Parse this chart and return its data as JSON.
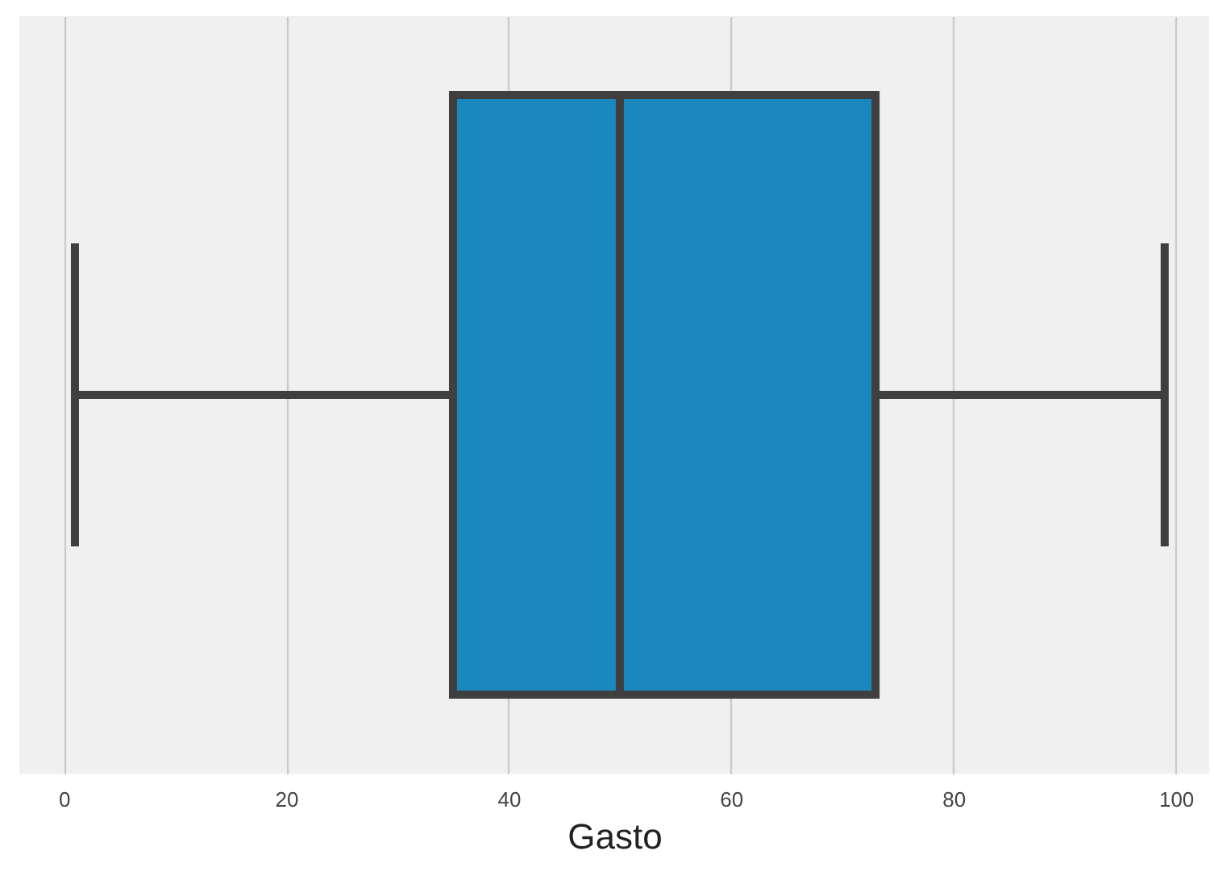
{
  "chart_data": {
    "type": "box",
    "orientation": "horizontal",
    "categories": [
      null
    ],
    "boxes": [
      {
        "low": 1,
        "q1": 35,
        "median": 50,
        "q3": 73,
        "high": 99
      }
    ],
    "color": "#1a87bd",
    "xlabel": "Gasto",
    "xlim": [
      -4,
      103
    ],
    "xticks": [
      0,
      20,
      40,
      60,
      80,
      100
    ],
    "grid": "x",
    "tick_labels": "x"
  }
}
